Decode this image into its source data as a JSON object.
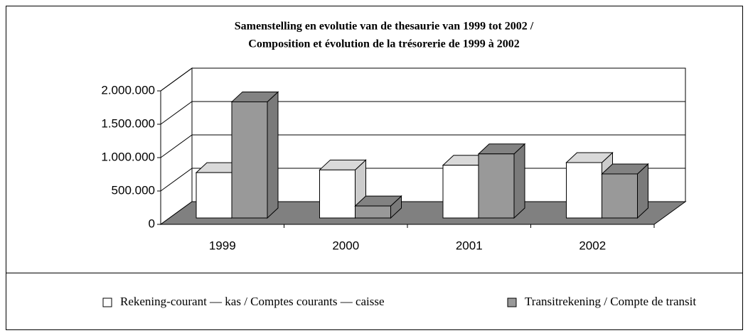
{
  "chart_data": {
    "type": "bar3d",
    "title": [
      "Samenstelling en evolutie van de thesaurie van 1999 tot 2002 /",
      "Composition et évolution de la trésorerie de 1999 à 2002"
    ],
    "categories": [
      "1999",
      "2000",
      "2001",
      "2002"
    ],
    "series": [
      {
        "name": "Rekening-courant — kas / Comptes courants — caisse",
        "color": "#ffffff",
        "values": [
          680000,
          720000,
          790000,
          830000
        ]
      },
      {
        "name": "Transitrekening / Compte de transit",
        "color": "#999999",
        "values": [
          1740000,
          180000,
          960000,
          660000
        ]
      }
    ],
    "ylim": [
      0,
      2000000
    ],
    "yticks": [
      0,
      {
        "value": 500000,
        "label": "500.000"
      },
      {
        "value": 1000000,
        "label": "1.000.000"
      },
      {
        "value": 1500000,
        "label": "1.500.000"
      },
      {
        "value": 2000000,
        "label": "2.000.000"
      }
    ],
    "grid": true,
    "legend": "bottom"
  }
}
